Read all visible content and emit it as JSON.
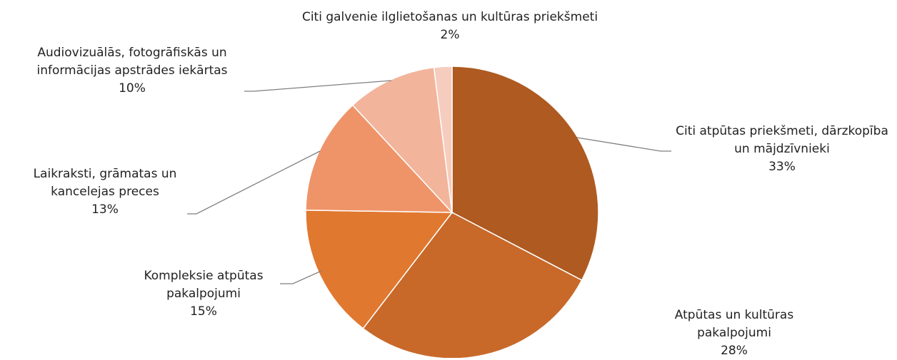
{
  "chart_data": {
    "type": "pie",
    "categories": [
      "Citi atpūtas priekšmeti, dārzkopība un mājdzīvnieki",
      "Atpūtas un kultūras pakalpojumi",
      "Kompleksie atpūtas pakalpojumi",
      "Laikraksti, grāmatas un kancelejas preces",
      "Audiovizuālās, fotogrāfiskās un informācijas apstrādes iekārtas",
      "Citi galvenie ilglietošanas un kultūras priekšmeti"
    ],
    "values": [
      33,
      28,
      15,
      13,
      10,
      2
    ],
    "value_labels": [
      "33%",
      "28%",
      "15%",
      "13%",
      "10%",
      "2%"
    ],
    "colors": [
      "#ae5a21",
      "#c8692a",
      "#e07830",
      "#ef9468",
      "#f2b49b",
      "#f5ccbe"
    ]
  }
}
